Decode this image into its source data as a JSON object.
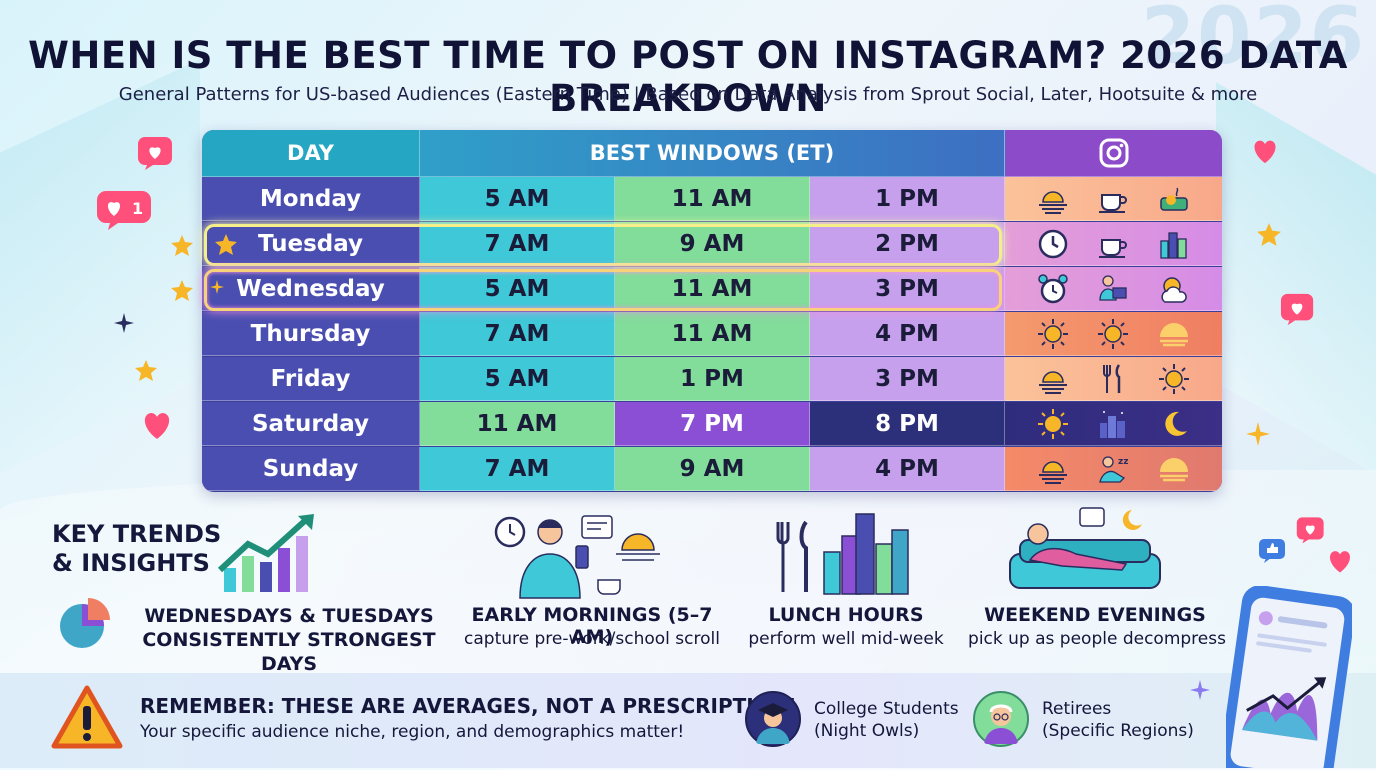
{
  "watermark": "2026",
  "title": "WHEN IS THE BEST TIME TO POST ON INSTAGRAM? 2026 DATA BREAKDOWN",
  "subtitle": "General Patterns for US-based Audiences (Eastern Time) | Based on Data Analysis from Sprout Social, Later, Hootsuite & more",
  "table": {
    "header_day": "DAY",
    "header_windows": "BEST WINDOWS (ET)",
    "header_icon": "instagram-icon",
    "rows": [
      {
        "day": "Monday",
        "t1": "5 AM",
        "t2": "11 AM",
        "t3": "1 PM",
        "icons": [
          "sunrise-icon",
          "coffee-icon",
          "lunch-icon"
        ]
      },
      {
        "day": "Tuesday",
        "t1": "7 AM",
        "t2": "9 AM",
        "t3": "2 PM",
        "icons": [
          "clock-icon",
          "coffee-icon",
          "city-icon"
        ]
      },
      {
        "day": "Wednesday",
        "t1": "5 AM",
        "t2": "11 AM",
        "t3": "3 PM",
        "icons": [
          "alarm-clock-icon",
          "laptop-worker-icon",
          "sun-cloud-icon"
        ]
      },
      {
        "day": "Thursday",
        "t1": "7 AM",
        "t2": "11 AM",
        "t3": "4 PM",
        "icons": [
          "sun-icon",
          "sun-icon",
          "sunset-icon"
        ]
      },
      {
        "day": "Friday",
        "t1": "5 AM",
        "t2": "1 PM",
        "t3": "3 PM",
        "icons": [
          "sunrise-icon",
          "fork-knife-icon",
          "sun-icon"
        ]
      },
      {
        "day": "Saturday",
        "t1": "11 AM",
        "t2": "7 PM",
        "t3": "8 PM",
        "icons": [
          "sun-icon",
          "night-city-icon",
          "moon-icon"
        ]
      },
      {
        "day": "Sunday",
        "t1": "7 AM",
        "t2": "9 AM",
        "t3": "4 PM",
        "icons": [
          "sunrise-icon",
          "relaxing-person-icon",
          "sunset-icon"
        ]
      }
    ],
    "colors": {
      "cyan": "#3fc8d7",
      "green": "#82dc9a",
      "lilac": "#c6a0ec",
      "violet": "#8a4fd4",
      "navy": "#2c2f7a"
    }
  },
  "trends": {
    "heading_line1": "KEY TRENDS",
    "heading_line2": "& INSIGHTS",
    "item1_line1": "WEDNESDAYS & TUESDAYS",
    "item1_line2": "CONSISTENTLY STRONGEST DAYS",
    "item2_title": "EARLY MORNINGS (5–7 AM)",
    "item2_sub": "capture pre-work/school scroll",
    "item3_title": "LUNCH HOURS",
    "item3_sub": "perform well mid-week",
    "item4_title": "WEEKEND EVENINGS",
    "item4_sub": "pick up as people decompress"
  },
  "reminder": {
    "heading": "REMEMBER: THESE ARE AVERAGES, NOT A PRESCRIPTION!",
    "text": "Your specific audience niche, region, and demographics matter!",
    "persona1_line1": "College Students",
    "persona1_line2": "(Night Owls)",
    "persona2_line1": "Retirees",
    "persona2_line2": "(Specific Regions)"
  },
  "badge_count": "1"
}
